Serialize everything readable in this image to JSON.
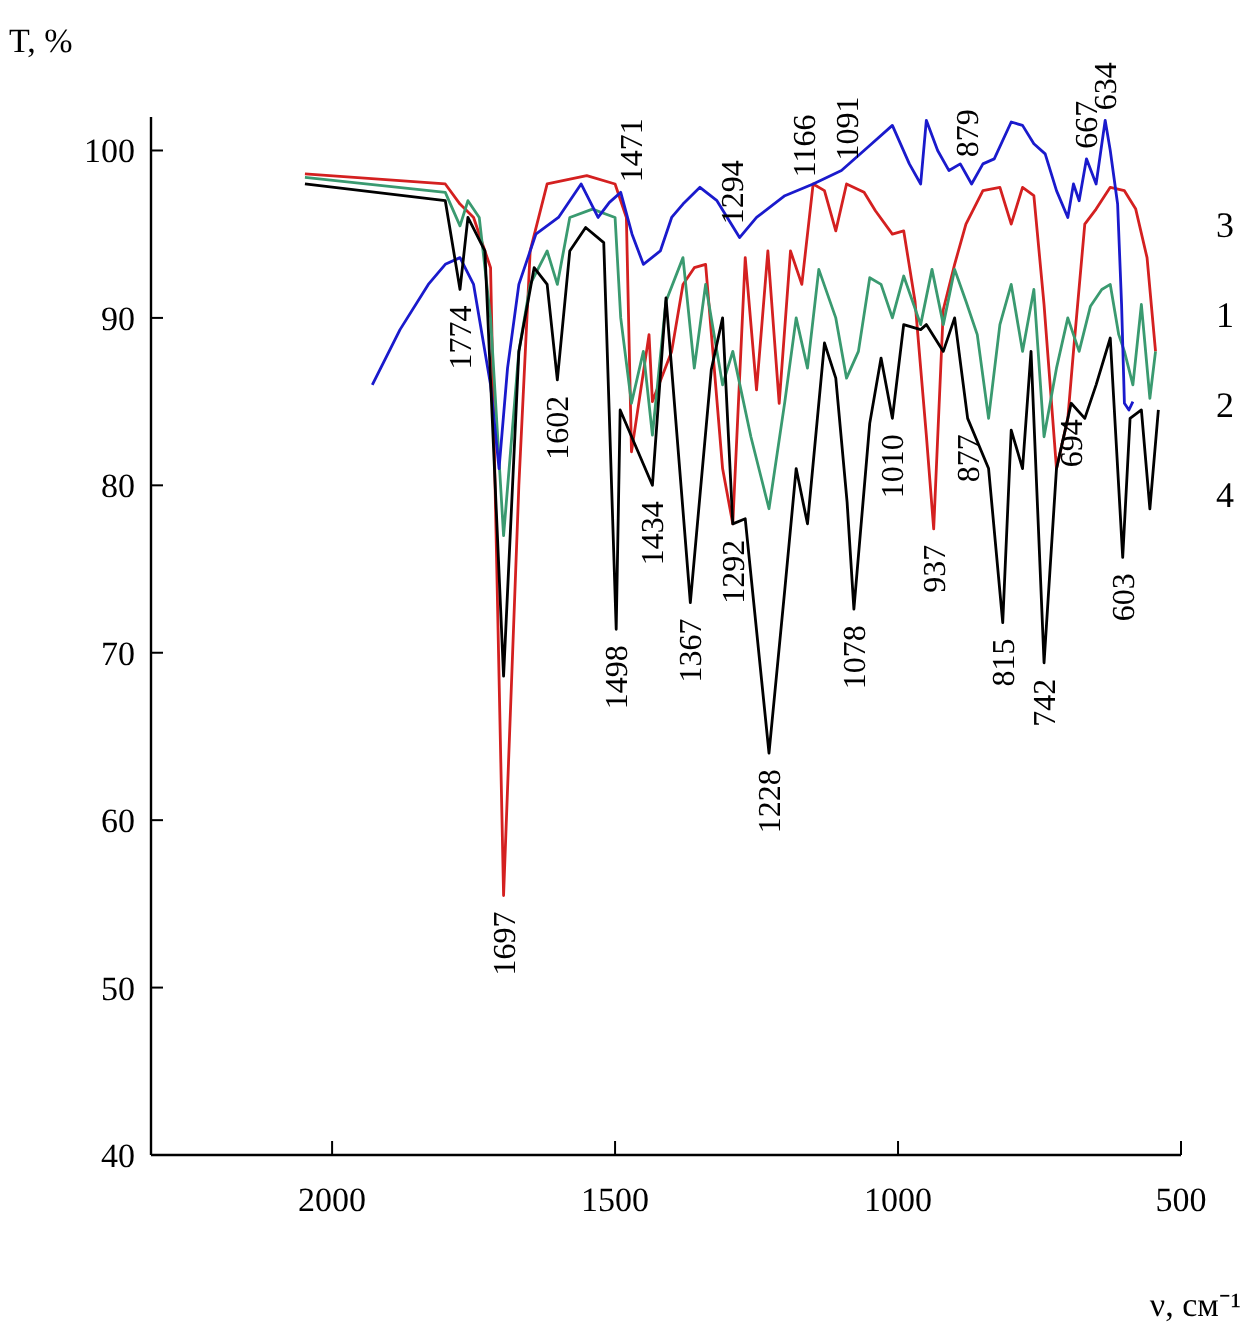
{
  "chart_data": {
    "type": "line",
    "xlabel": "ν, см⁻¹",
    "ylabel": "T, %",
    "xlim": [
      2320,
      500
    ],
    "ylim": [
      40,
      102
    ],
    "xticks": [
      2000,
      1500,
      1000,
      500
    ],
    "yticks": [
      40,
      50,
      60,
      70,
      80,
      90,
      100
    ],
    "grid": false,
    "series": [
      {
        "name": "3",
        "color": "#d42020",
        "x": [
          2048,
          1800,
          1774,
          1750,
          1720,
          1697,
          1670,
          1650,
          1620,
          1550,
          1500,
          1480,
          1471,
          1440,
          1434,
          1400,
          1380,
          1360,
          1340,
          1310,
          1292,
          1270,
          1250,
          1230,
          1210,
          1190,
          1170,
          1150,
          1130,
          1110,
          1091,
          1060,
          1040,
          1010,
          990,
          970,
          950,
          937,
          920,
          900,
          880,
          850,
          820,
          800,
          780,
          760,
          742,
          720,
          700,
          690,
          670,
          650,
          625,
          600,
          580,
          560,
          545
        ],
        "values": [
          98.6,
          98,
          96.8,
          96,
          93,
          55.5,
          80,
          94,
          98,
          98.5,
          98,
          96,
          82,
          89,
          85,
          88,
          92,
          93,
          93.2,
          81,
          77.7,
          93.6,
          85.7,
          94,
          84.9,
          94,
          92,
          98,
          97.6,
          95.2,
          98,
          97.5,
          96.4,
          95,
          95.2,
          91,
          83,
          77.4,
          90.5,
          93.2,
          95.6,
          97.6,
          97.8,
          95.6,
          97.8,
          97.3,
          90.8,
          81,
          84,
          88,
          95.6,
          96.5,
          97.8,
          97.6,
          96.5,
          93.6,
          88
        ]
      },
      {
        "name": "1",
        "color": "#3a9a70",
        "x": [
          2048,
          1800,
          1774,
          1760,
          1740,
          1720,
          1697,
          1670,
          1650,
          1620,
          1602,
          1580,
          1540,
          1500,
          1490,
          1471,
          1450,
          1434,
          1410,
          1380,
          1360,
          1340,
          1310,
          1292,
          1260,
          1228,
          1200,
          1180,
          1160,
          1140,
          1110,
          1091,
          1070,
          1050,
          1030,
          1010,
          990,
          960,
          940,
          920,
          900,
          880,
          860,
          840,
          820,
          800,
          780,
          760,
          742,
          720,
          700,
          680,
          660,
          640,
          625,
          610,
          600,
          585,
          570,
          555,
          545
        ],
        "values": [
          98.4,
          97.5,
          95.5,
          97,
          96,
          90,
          77,
          88,
          92,
          94,
          92,
          96,
          96.5,
          96,
          90,
          84.9,
          88,
          83,
          91,
          93.6,
          87,
          92,
          86,
          88,
          82.9,
          78.6,
          85,
          90,
          87,
          92.9,
          90,
          86.4,
          88,
          92.4,
          92,
          90,
          92.5,
          89.6,
          92.9,
          89.6,
          92.9,
          91,
          89,
          84,
          89.6,
          92,
          88,
          91.7,
          82.9,
          87,
          90,
          88,
          90.7,
          91.7,
          92,
          89,
          88,
          86,
          90.8,
          85.2,
          88
        ]
      },
      {
        "name": "2",
        "color": "#1a1acc",
        "x": [
          1929,
          1880,
          1830,
          1800,
          1774,
          1750,
          1720,
          1705,
          1690,
          1670,
          1640,
          1600,
          1560,
          1530,
          1510,
          1490,
          1470,
          1450,
          1420,
          1400,
          1380,
          1350,
          1320,
          1280,
          1250,
          1200,
          1150,
          1100,
          1050,
          1010,
          980,
          960,
          950,
          930,
          910,
          890,
          870,
          850,
          830,
          800,
          780,
          760,
          740,
          720,
          700,
          690,
          680,
          667,
          650,
          634,
          625,
          612,
          605,
          600,
          592,
          585
        ],
        "values": [
          86,
          89.3,
          92,
          93.2,
          93.6,
          92,
          86,
          81,
          87,
          92,
          95,
          96,
          98,
          96,
          96.9,
          97.5,
          95,
          93.2,
          94,
          96,
          96.8,
          97.8,
          97,
          94.8,
          96,
          97.3,
          98,
          98.8,
          100.3,
          101.5,
          99.2,
          98,
          101.8,
          100,
          98.8,
          99.2,
          98,
          99.2,
          99.5,
          101.7,
          101.5,
          100.4,
          99.8,
          97.6,
          96,
          98,
          97,
          99.5,
          98,
          101.8,
          100,
          96.8,
          90.8,
          84.9,
          84.5,
          85
        ]
      },
      {
        "name": "4",
        "color": "#000000",
        "x": [
          2048,
          1800,
          1774,
          1760,
          1730,
          1697,
          1670,
          1643,
          1620,
          1602,
          1580,
          1552,
          1520,
          1498,
          1491,
          1434,
          1410,
          1367,
          1330,
          1310,
          1292,
          1270,
          1228,
          1200,
          1180,
          1160,
          1130,
          1110,
          1090,
          1078,
          1050,
          1030,
          1010,
          990,
          960,
          950,
          920,
          900,
          877,
          840,
          815,
          800,
          780,
          765,
          742,
          720,
          694,
          670,
          650,
          625,
          603,
          590,
          570,
          555,
          540
        ],
        "values": [
          98,
          97,
          91.7,
          96,
          94,
          68.6,
          88,
          93,
          92,
          86.3,
          94,
          95.4,
          94.5,
          71.4,
          84.5,
          80,
          91.2,
          73,
          86.9,
          90,
          77.7,
          78,
          64,
          73.8,
          81,
          77.7,
          88.5,
          86.4,
          79,
          72.6,
          83.7,
          87.6,
          84,
          89.6,
          89.3,
          89.6,
          88,
          90,
          84,
          81,
          71.8,
          83.3,
          81,
          88,
          69.4,
          81,
          84.9,
          84,
          86,
          88.8,
          75.7,
          84,
          84.5,
          78.6,
          84.5
        ]
      }
    ],
    "annotations": [
      {
        "text": "1774",
        "x": 1774,
        "y": 91.7
      },
      {
        "text": "1697",
        "x": 1697,
        "y": 55.5
      },
      {
        "text": "1602",
        "x": 1602,
        "y": 86.3
      },
      {
        "text": "1498",
        "x": 1498,
        "y": 71.4
      },
      {
        "text": "1471",
        "x": 1471,
        "y": 97.5
      },
      {
        "text": "1434",
        "x": 1434,
        "y": 80
      },
      {
        "text": "1367",
        "x": 1367,
        "y": 73
      },
      {
        "text": "1294",
        "x": 1294,
        "y": 95
      },
      {
        "text": "1292",
        "x": 1292,
        "y": 77.7
      },
      {
        "text": "1228",
        "x": 1228,
        "y": 64
      },
      {
        "text": "1166",
        "x": 1166,
        "y": 97.8
      },
      {
        "text": "1091",
        "x": 1091,
        "y": 98.8
      },
      {
        "text": "1078",
        "x": 1078,
        "y": 72.6
      },
      {
        "text": "1010",
        "x": 1010,
        "y": 84
      },
      {
        "text": "937",
        "x": 937,
        "y": 77.4
      },
      {
        "text": "879",
        "x": 879,
        "y": 99
      },
      {
        "text": "877",
        "x": 877,
        "y": 84
      },
      {
        "text": "815",
        "x": 815,
        "y": 71.8
      },
      {
        "text": "742",
        "x": 742,
        "y": 69.4
      },
      {
        "text": "694",
        "x": 694,
        "y": 84.9
      },
      {
        "text": "667",
        "x": 667,
        "y": 99.5
      },
      {
        "text": "634",
        "x": 634,
        "y": 101.8
      },
      {
        "text": "603",
        "x": 603,
        "y": 75.7
      }
    ]
  }
}
